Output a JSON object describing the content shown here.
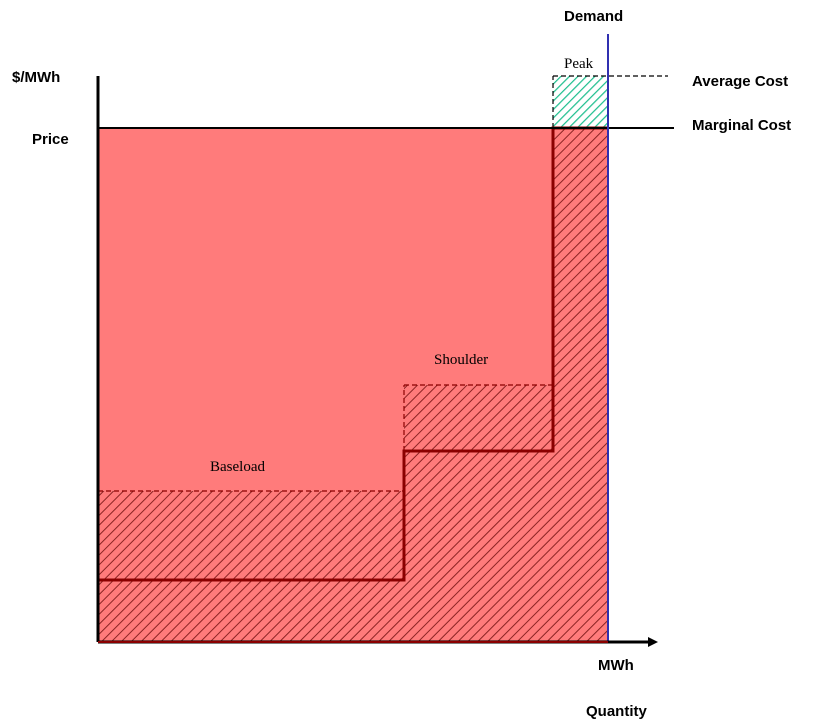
{
  "diagram": {
    "y_axis_label": "$/MWh",
    "price_label": "Price",
    "demand_label": "Demand",
    "average_cost_label": "Average Cost",
    "marginal_cost_label": "Marginal Cost",
    "x_axis_label": "MWh",
    "quantity_label": "Quantity",
    "segments": {
      "peak": "Peak",
      "shoulder": "Shoulder",
      "baseload": "Baseload"
    },
    "colors": {
      "revenue_fill": "#ff7b7b",
      "cost_hatch": "#8b2323",
      "peak_hatch": "#1fbf8f",
      "step_line": "#8b0000",
      "demand_line": "#3030b0",
      "axis": "#000000"
    }
  }
}
